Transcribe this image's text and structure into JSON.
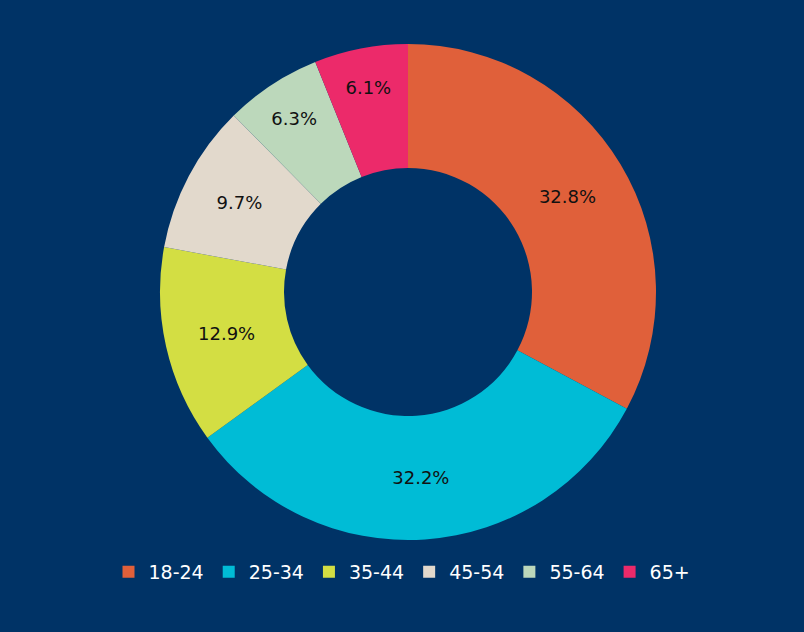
{
  "chart_data": {
    "type": "pie",
    "categories": [
      "18-24",
      "25-34",
      "35-44",
      "45-54",
      "55-64",
      "65+"
    ],
    "values": [
      32.8,
      32.2,
      12.9,
      9.7,
      6.3,
      6.1
    ],
    "value_labels": [
      "32.8%",
      "32.2%",
      "12.9%",
      "9.7%",
      "6.3%",
      "6.1%"
    ],
    "colors": [
      "#e0603a",
      "#00bcd6",
      "#d3de43",
      "#e2d9cc",
      "#bcd8bb",
      "#ec2a6a"
    ],
    "data_labels": true,
    "legend": "bottom"
  }
}
